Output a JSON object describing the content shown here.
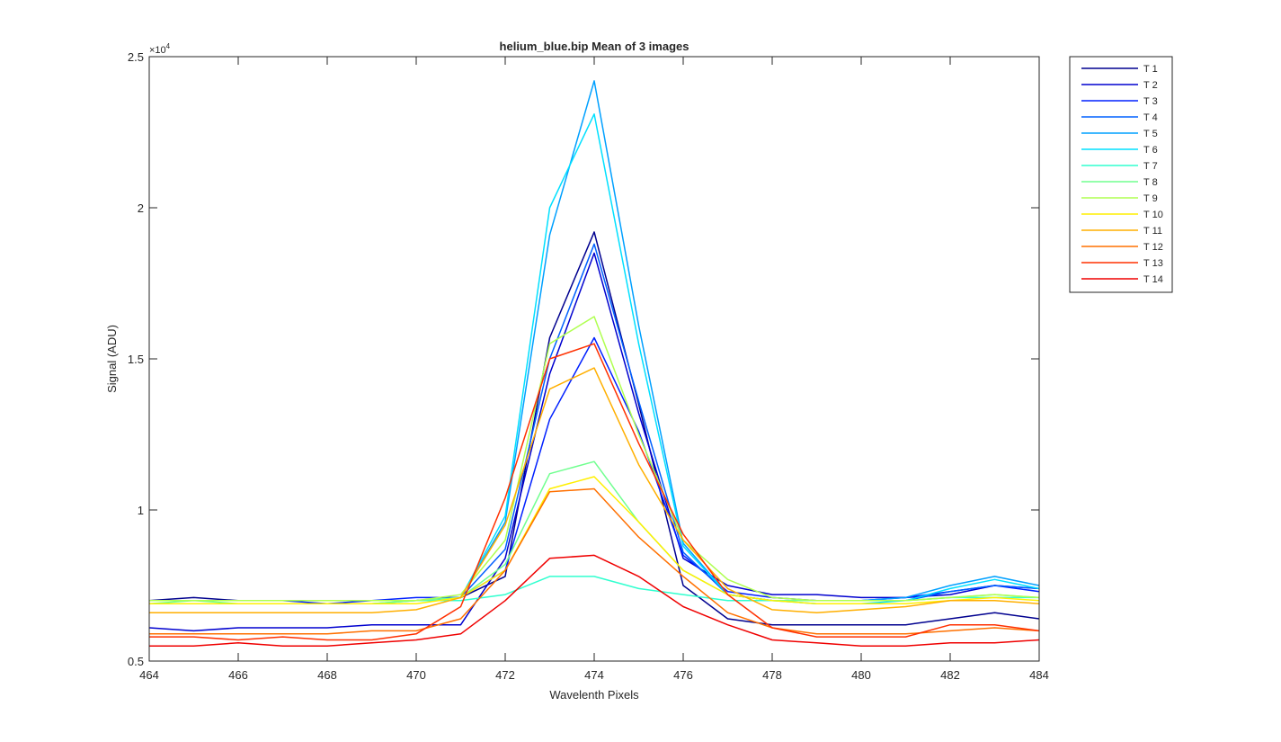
{
  "chart_data": {
    "type": "line",
    "title": "helium_blue.bip  Mean of 3 images",
    "xlabel": "Wavelenth Pixels",
    "ylabel": "Signal (ADU)",
    "y_exponent_label": "×10",
    "y_exponent_power": "4",
    "xlim": [
      464,
      484
    ],
    "ylim": [
      0.5,
      2.5
    ],
    "x_ticks": [
      "464",
      "466",
      "468",
      "470",
      "472",
      "474",
      "476",
      "478",
      "480",
      "482",
      "484"
    ],
    "y_ticks": [
      "0.5",
      "1",
      "1.5",
      "2",
      "2.5"
    ],
    "grid": false,
    "legend_position": "outside-top-right",
    "x": [
      464,
      465,
      466,
      467,
      468,
      469,
      470,
      471,
      472,
      473,
      474,
      475,
      476,
      477,
      478,
      479,
      480,
      481,
      482,
      483,
      484
    ],
    "series": [
      {
        "name": "T 1",
        "color": "#00008F",
        "values": [
          0.7,
          0.71,
          0.7,
          0.7,
          0.7,
          0.7,
          0.7,
          0.71,
          0.78,
          1.57,
          1.92,
          1.35,
          0.75,
          0.64,
          0.62,
          0.62,
          0.62,
          0.62,
          0.64,
          0.66,
          0.64
        ]
      },
      {
        "name": "T 2",
        "color": "#0000CF",
        "values": [
          0.61,
          0.6,
          0.61,
          0.61,
          0.61,
          0.62,
          0.62,
          0.62,
          0.84,
          1.45,
          1.85,
          1.32,
          0.84,
          0.75,
          0.72,
          0.72,
          0.71,
          0.71,
          0.72,
          0.75,
          0.74
        ]
      },
      {
        "name": "T 3",
        "color": "#0020FF",
        "values": [
          0.7,
          0.7,
          0.7,
          0.7,
          0.69,
          0.7,
          0.71,
          0.71,
          0.8,
          1.3,
          1.57,
          1.26,
          0.85,
          0.73,
          0.71,
          0.7,
          0.7,
          0.71,
          0.73,
          0.75,
          0.73
        ]
      },
      {
        "name": "T 4",
        "color": "#0060FF",
        "values": [
          0.7,
          0.7,
          0.7,
          0.7,
          0.7,
          0.7,
          0.7,
          0.71,
          0.87,
          1.5,
          1.88,
          1.36,
          0.86,
          0.72,
          0.7,
          0.7,
          0.7,
          0.7,
          0.73,
          0.75,
          0.74
        ]
      },
      {
        "name": "T 5",
        "color": "#00A0FF",
        "values": [
          0.7,
          0.7,
          0.7,
          0.7,
          0.7,
          0.7,
          0.7,
          0.71,
          0.96,
          1.91,
          2.42,
          1.61,
          0.89,
          0.72,
          0.7,
          0.7,
          0.7,
          0.71,
          0.75,
          0.78,
          0.75
        ]
      },
      {
        "name": "T 6",
        "color": "#00E0FF",
        "values": [
          0.69,
          0.69,
          0.69,
          0.69,
          0.69,
          0.69,
          0.7,
          0.71,
          0.98,
          2.0,
          2.31,
          1.55,
          0.88,
          0.72,
          0.7,
          0.69,
          0.69,
          0.7,
          0.74,
          0.77,
          0.74
        ]
      },
      {
        "name": "T 7",
        "color": "#30FFCF",
        "values": [
          0.7,
          0.7,
          0.7,
          0.7,
          0.7,
          0.7,
          0.7,
          0.7,
          0.72,
          0.78,
          0.78,
          0.74,
          0.72,
          0.7,
          0.7,
          0.7,
          0.7,
          0.7,
          0.71,
          0.71,
          0.71
        ]
      },
      {
        "name": "T 8",
        "color": "#70FF8F",
        "values": [
          0.69,
          0.7,
          0.69,
          0.69,
          0.69,
          0.69,
          0.7,
          0.71,
          0.82,
          1.12,
          1.16,
          0.96,
          0.8,
          0.72,
          0.7,
          0.7,
          0.7,
          0.7,
          0.71,
          0.72,
          0.71
        ]
      },
      {
        "name": "T 9",
        "color": "#AFFF50",
        "values": [
          0.7,
          0.7,
          0.7,
          0.7,
          0.7,
          0.7,
          0.7,
          0.72,
          0.9,
          1.55,
          1.64,
          1.25,
          0.9,
          0.77,
          0.71,
          0.7,
          0.7,
          0.7,
          0.71,
          0.72,
          0.71
        ]
      },
      {
        "name": "T 10",
        "color": "#FFEF00",
        "values": [
          0.69,
          0.69,
          0.69,
          0.69,
          0.69,
          0.69,
          0.69,
          0.71,
          0.8,
          1.07,
          1.11,
          0.96,
          0.8,
          0.72,
          0.7,
          0.69,
          0.69,
          0.69,
          0.7,
          0.71,
          0.7
        ]
      },
      {
        "name": "T 11",
        "color": "#FFAF00",
        "values": [
          0.66,
          0.66,
          0.66,
          0.66,
          0.66,
          0.66,
          0.67,
          0.71,
          0.95,
          1.4,
          1.47,
          1.15,
          0.9,
          0.74,
          0.67,
          0.66,
          0.67,
          0.68,
          0.7,
          0.7,
          0.69
        ]
      },
      {
        "name": "T 12",
        "color": "#FF7000",
        "values": [
          0.59,
          0.59,
          0.59,
          0.59,
          0.59,
          0.6,
          0.6,
          0.64,
          0.8,
          1.06,
          1.07,
          0.91,
          0.78,
          0.66,
          0.61,
          0.59,
          0.59,
          0.59,
          0.6,
          0.61,
          0.6
        ]
      },
      {
        "name": "T 13",
        "color": "#FF3000",
        "values": [
          0.58,
          0.58,
          0.57,
          0.58,
          0.57,
          0.57,
          0.59,
          0.68,
          1.04,
          1.5,
          1.55,
          1.22,
          0.92,
          0.72,
          0.61,
          0.58,
          0.58,
          0.58,
          0.62,
          0.62,
          0.6
        ]
      },
      {
        "name": "T 14",
        "color": "#EF0000",
        "values": [
          0.55,
          0.55,
          0.56,
          0.55,
          0.55,
          0.56,
          0.57,
          0.59,
          0.7,
          0.84,
          0.85,
          0.78,
          0.68,
          0.62,
          0.57,
          0.56,
          0.55,
          0.55,
          0.56,
          0.56,
          0.57
        ]
      }
    ]
  }
}
